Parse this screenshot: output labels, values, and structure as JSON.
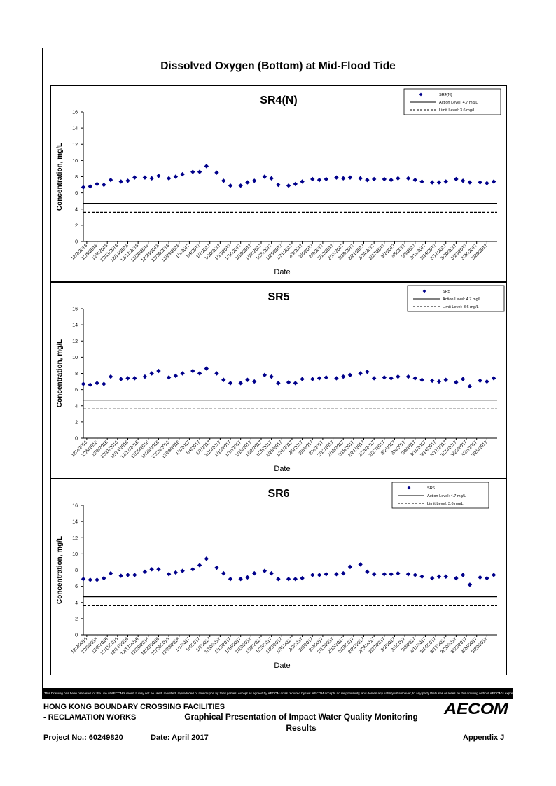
{
  "page": {
    "title": "Dissolved Oxygen (Bottom) at Mid-Flood Tide",
    "disclaimer": "This Drawing has been prepared for the use of AECOM's client. It may not be used, modified, reproduced or relied upon by third parties, except as agreed by AECOM or as required by law. AECOM accepts no responsibility, and denies any liability whatsoever, to any party that uses or relies on this drawing without AECOM's express written consent."
  },
  "footer": {
    "company_line1": "HONG KONG BOUNDARY CROSSING FACILITIES",
    "company_line2": "- RECLAMATION WORKS",
    "report_title": "Graphical Presentation of Impact Water Quality Monitoring Results",
    "project_no": "Project No.: 60249820",
    "date": "Date: April 2017",
    "appendix": "Appendix J",
    "logo_text": "AECOM"
  },
  "chart_data": [
    {
      "type": "scatter",
      "title": "SR4(N)",
      "xlabel": "Date",
      "ylabel": "Concentration, mg/L",
      "ylim": [
        0,
        16
      ],
      "yticks": [
        0,
        2,
        4,
        6,
        8,
        10,
        12,
        14,
        16
      ],
      "x_tick_labels": [
        "12/2/2016",
        "12/5/2016",
        "12/8/2016",
        "12/11/2016",
        "12/14/2016",
        "12/17/2016",
        "12/20/2016",
        "12/23/2016",
        "12/26/2016",
        "12/29/2016",
        "1/1/2017",
        "1/4/2017",
        "1/7/2017",
        "1/10/2017",
        "1/13/2017",
        "1/16/2017",
        "1/19/2017",
        "1/22/2017",
        "1/25/2017",
        "1/28/2017",
        "1/31/2017",
        "2/3/2017",
        "2/6/2017",
        "2/9/2017",
        "2/12/2017",
        "2/15/2017",
        "2/18/2017",
        "2/21/2017",
        "2/24/2017",
        "2/27/2017",
        "3/2/2017",
        "3/5/2017",
        "3/8/2017",
        "3/11/2017",
        "3/14/2017",
        "3/17/2017",
        "3/20/2017",
        "3/23/2017",
        "3/26/2017",
        "3/29/2017"
      ],
      "series": [
        {
          "name": "SR4(N)",
          "color": "#00008B",
          "marker": "diamond",
          "x": [
            "2016-12-01",
            "2016-12-03",
            "2016-12-05",
            "2016-12-07",
            "2016-12-09",
            "2016-12-12",
            "2016-12-14",
            "2016-12-16",
            "2016-12-19",
            "2016-12-21",
            "2016-12-23",
            "2016-12-26",
            "2016-12-28",
            "2016-12-30",
            "2017-01-02",
            "2017-01-04",
            "2017-01-06",
            "2017-01-09",
            "2017-01-11",
            "2017-01-13",
            "2017-01-16",
            "2017-01-18",
            "2017-01-20",
            "2017-01-23",
            "2017-01-25",
            "2017-01-27",
            "2017-01-30",
            "2017-02-01",
            "2017-02-03",
            "2017-02-06",
            "2017-02-08",
            "2017-02-10",
            "2017-02-13",
            "2017-02-15",
            "2017-02-17",
            "2017-02-20",
            "2017-02-22",
            "2017-02-24",
            "2017-02-27",
            "2017-03-01",
            "2017-03-03",
            "2017-03-06",
            "2017-03-08",
            "2017-03-10",
            "2017-03-13",
            "2017-03-15",
            "2017-03-17",
            "2017-03-20",
            "2017-03-22",
            "2017-03-24",
            "2017-03-27",
            "2017-03-29",
            "2017-03-31"
          ],
          "values": [
            6.7,
            6.8,
            7.1,
            7.0,
            7.6,
            7.4,
            7.5,
            7.9,
            7.9,
            7.8,
            8.1,
            7.8,
            8.0,
            8.3,
            8.6,
            8.6,
            9.3,
            8.5,
            7.5,
            6.9,
            6.9,
            7.3,
            7.5,
            8.0,
            7.8,
            7.0,
            6.9,
            7.1,
            7.4,
            7.7,
            7.6,
            7.7,
            7.9,
            7.8,
            7.9,
            7.8,
            7.6,
            7.7,
            7.7,
            7.6,
            7.8,
            7.8,
            7.6,
            7.4,
            7.3,
            7.3,
            7.4,
            7.7,
            7.5,
            7.3,
            7.3,
            7.2,
            7.4
          ]
        },
        {
          "name": "Action Level: 4.7 mg/L",
          "color": "#000000",
          "style": "solid",
          "constant": 4.7
        },
        {
          "name": "Limit Level: 3.6 mg/L",
          "color": "#000000",
          "style": "dashed",
          "constant": 3.6
        }
      ]
    },
    {
      "type": "scatter",
      "title": "SR5",
      "xlabel": "Date",
      "ylabel": "Concentration, mg/L",
      "ylim": [
        0,
        16
      ],
      "yticks": [
        0,
        2,
        4,
        6,
        8,
        10,
        12,
        14,
        16
      ],
      "x_tick_labels": [
        "12/2/2016",
        "12/5/2016",
        "12/8/2016",
        "12/11/2016",
        "12/14/2016",
        "12/17/2016",
        "12/20/2016",
        "12/23/2016",
        "12/26/2016",
        "12/29/2016",
        "1/1/2017",
        "1/4/2017",
        "1/7/2017",
        "1/10/2017",
        "1/13/2017",
        "1/16/2017",
        "1/19/2017",
        "1/22/2017",
        "1/25/2017",
        "1/28/2017",
        "1/31/2017",
        "2/3/2017",
        "2/6/2017",
        "2/9/2017",
        "2/12/2017",
        "2/15/2017",
        "2/18/2017",
        "2/21/2017",
        "2/24/2017",
        "2/27/2017",
        "3/2/2017",
        "3/5/2017",
        "3/8/2017",
        "3/11/2017",
        "3/14/2017",
        "3/17/2017",
        "3/20/2017",
        "3/23/2017",
        "3/26/2017",
        "3/29/2017"
      ],
      "series": [
        {
          "name": "SR5",
          "color": "#00008B",
          "marker": "diamond",
          "x": [
            "2016-12-01",
            "2016-12-03",
            "2016-12-05",
            "2016-12-07",
            "2016-12-09",
            "2016-12-12",
            "2016-12-14",
            "2016-12-16",
            "2016-12-19",
            "2016-12-21",
            "2016-12-23",
            "2016-12-26",
            "2016-12-28",
            "2016-12-30",
            "2017-01-02",
            "2017-01-04",
            "2017-01-06",
            "2017-01-09",
            "2017-01-11",
            "2017-01-13",
            "2017-01-16",
            "2017-01-18",
            "2017-01-20",
            "2017-01-23",
            "2017-01-25",
            "2017-01-27",
            "2017-01-30",
            "2017-02-01",
            "2017-02-03",
            "2017-02-06",
            "2017-02-08",
            "2017-02-10",
            "2017-02-13",
            "2017-02-15",
            "2017-02-17",
            "2017-02-20",
            "2017-02-22",
            "2017-02-24",
            "2017-02-27",
            "2017-03-01",
            "2017-03-03",
            "2017-03-06",
            "2017-03-08",
            "2017-03-10",
            "2017-03-13",
            "2017-03-15",
            "2017-03-17",
            "2017-03-20",
            "2017-03-22",
            "2017-03-24",
            "2017-03-27",
            "2017-03-29",
            "2017-03-31"
          ],
          "values": [
            6.7,
            6.6,
            6.8,
            6.7,
            7.6,
            7.3,
            7.4,
            7.4,
            7.6,
            8.0,
            8.3,
            7.5,
            7.7,
            8.0,
            8.3,
            8.0,
            8.6,
            8.0,
            7.2,
            6.8,
            6.8,
            7.2,
            7.0,
            7.8,
            7.6,
            6.8,
            6.9,
            6.8,
            7.3,
            7.3,
            7.4,
            7.5,
            7.4,
            7.6,
            7.8,
            8.0,
            8.2,
            7.4,
            7.5,
            7.4,
            7.6,
            7.6,
            7.4,
            7.2,
            7.1,
            7.0,
            7.2,
            6.9,
            7.3,
            6.4,
            7.1,
            7.0,
            7.4
          ]
        },
        {
          "name": "Action Level: 4.7 mg/L",
          "color": "#000000",
          "style": "solid",
          "constant": 4.7
        },
        {
          "name": "Limit Level: 3.6 mg/L",
          "color": "#000000",
          "style": "dashed",
          "constant": 3.6
        }
      ]
    },
    {
      "type": "scatter",
      "title": "SR6",
      "xlabel": "Date",
      "ylabel": "Concentration, mg/L",
      "ylim": [
        0,
        16
      ],
      "yticks": [
        0,
        2,
        4,
        6,
        8,
        10,
        12,
        14,
        16
      ],
      "x_tick_labels": [
        "12/2/2016",
        "12/5/2016",
        "12/8/2016",
        "12/11/2016",
        "12/14/2016",
        "12/17/2016",
        "12/20/2016",
        "12/23/2016",
        "12/26/2016",
        "12/29/2016",
        "1/1/2017",
        "1/4/2017",
        "1/7/2017",
        "1/10/2017",
        "1/13/2017",
        "1/16/2017",
        "1/19/2017",
        "1/22/2017",
        "1/25/2017",
        "1/28/2017",
        "1/31/2017",
        "2/3/2017",
        "2/6/2017",
        "2/9/2017",
        "2/12/2017",
        "2/15/2017",
        "2/18/2017",
        "2/21/2017",
        "2/24/2017",
        "2/27/2017",
        "3/2/2017",
        "3/5/2017",
        "3/8/2017",
        "3/11/2017",
        "3/14/2017",
        "3/17/2017",
        "3/20/2017",
        "3/23/2017",
        "3/26/2017",
        "3/29/2017"
      ],
      "series": [
        {
          "name": "SR6",
          "color": "#00008B",
          "marker": "diamond",
          "x": [
            "2016-12-01",
            "2016-12-03",
            "2016-12-05",
            "2016-12-07",
            "2016-12-09",
            "2016-12-12",
            "2016-12-14",
            "2016-12-16",
            "2016-12-19",
            "2016-12-21",
            "2016-12-23",
            "2016-12-26",
            "2016-12-28",
            "2016-12-30",
            "2017-01-02",
            "2017-01-04",
            "2017-01-06",
            "2017-01-09",
            "2017-01-11",
            "2017-01-13",
            "2017-01-16",
            "2017-01-18",
            "2017-01-20",
            "2017-01-23",
            "2017-01-25",
            "2017-01-27",
            "2017-01-30",
            "2017-02-01",
            "2017-02-03",
            "2017-02-06",
            "2017-02-08",
            "2017-02-10",
            "2017-02-13",
            "2017-02-15",
            "2017-02-17",
            "2017-02-20",
            "2017-02-22",
            "2017-02-24",
            "2017-02-27",
            "2017-03-01",
            "2017-03-03",
            "2017-03-06",
            "2017-03-08",
            "2017-03-10",
            "2017-03-13",
            "2017-03-15",
            "2017-03-17",
            "2017-03-20",
            "2017-03-22",
            "2017-03-24",
            "2017-03-27",
            "2017-03-29",
            "2017-03-31"
          ],
          "values": [
            6.9,
            6.8,
            6.8,
            7.0,
            7.6,
            7.3,
            7.4,
            7.4,
            7.8,
            8.1,
            8.1,
            7.5,
            7.7,
            7.9,
            8.1,
            8.6,
            9.4,
            8.3,
            7.6,
            6.9,
            6.9,
            7.1,
            7.6,
            7.9,
            7.6,
            6.9,
            6.9,
            6.9,
            7.0,
            7.4,
            7.4,
            7.5,
            7.5,
            7.6,
            8.4,
            8.7,
            7.8,
            7.5,
            7.5,
            7.5,
            7.6,
            7.5,
            7.4,
            7.2,
            7.0,
            7.2,
            7.2,
            7.0,
            7.4,
            6.2,
            7.1,
            7.0,
            7.4
          ]
        },
        {
          "name": "Action Level: 4.7 mg/L",
          "color": "#000000",
          "style": "solid",
          "constant": 4.7
        },
        {
          "name": "Limit Level: 3.6 mg/L",
          "color": "#000000",
          "style": "dashed",
          "constant": 3.6
        }
      ]
    }
  ]
}
